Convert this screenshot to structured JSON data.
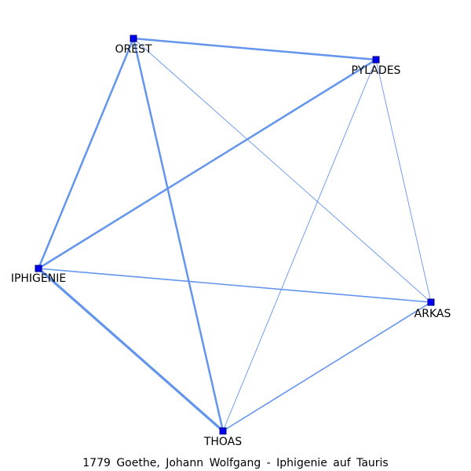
{
  "caption": "1779 Goethe, Johann Wolfgang - Iphigenie auf Tauris",
  "colors": {
    "edge": "#6495ed",
    "node": "#0000ee",
    "label": "#000000"
  },
  "nodes": [
    {
      "id": "orest",
      "label": "OREST"
    },
    {
      "id": "pylades",
      "label": "PYLADES"
    },
    {
      "id": "iphigenie",
      "label": "IPHIGENIE"
    },
    {
      "id": "arkas",
      "label": "ARKAS"
    },
    {
      "id": "thoas",
      "label": "THOAS"
    }
  ],
  "edges": [
    {
      "source": "orest",
      "target": "pylades",
      "weight": 3
    },
    {
      "source": "orest",
      "target": "iphigenie",
      "weight": 3
    },
    {
      "source": "orest",
      "target": "thoas",
      "weight": 3
    },
    {
      "source": "orest",
      "target": "arkas",
      "weight": 1
    },
    {
      "source": "pylades",
      "target": "iphigenie",
      "weight": 3
    },
    {
      "source": "pylades",
      "target": "thoas",
      "weight": 1
    },
    {
      "source": "pylades",
      "target": "arkas",
      "weight": 1
    },
    {
      "source": "iphigenie",
      "target": "thoas",
      "weight": 4
    },
    {
      "source": "iphigenie",
      "target": "arkas",
      "weight": 2
    },
    {
      "source": "thoas",
      "target": "arkas",
      "weight": 2
    }
  ]
}
